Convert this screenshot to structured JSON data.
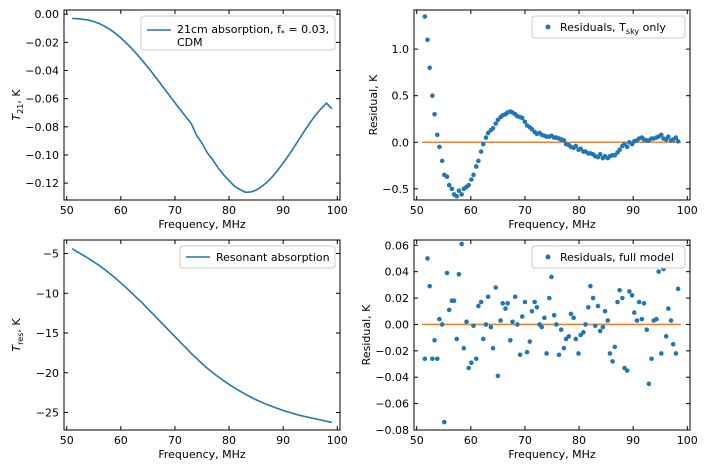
{
  "colors": {
    "series": "#1f77b4",
    "zero_line": "#ff7f0e",
    "axes": "#000000"
  },
  "chart_data": [
    {
      "id": "tl",
      "type": "line",
      "xlabel": "Frequency, MHz",
      "ylabel": "T",
      "ylabel_sub": "21",
      "ylabel_suffix": ", K",
      "xlim": [
        49.5,
        100.5
      ],
      "ylim": [
        -0.132,
        0.003
      ],
      "xticks": [
        50,
        60,
        70,
        80,
        90,
        100
      ],
      "xtick_labels": [
        "50",
        "60",
        "70",
        "80",
        "90",
        "100"
      ],
      "yticks": [
        0.0,
        -0.02,
        -0.04,
        -0.06,
        -0.08,
        -0.1,
        -0.12
      ],
      "ytick_labels": [
        "0.00",
        "−0.02",
        "−0.04",
        "−0.06",
        "−0.08",
        "−0.10",
        "−0.12"
      ],
      "legend": {
        "position": "top-right",
        "line1": "21cm absorption, f",
        "line1_sub": "*",
        "line1_suffix": " = 0.03,",
        "line2": "CDM"
      },
      "series": [
        {
          "name": "21cm absorption, f* = 0.03, CDM",
          "x": [
            51,
            52,
            53,
            54,
            55,
            56,
            57,
            58,
            59,
            60,
            61,
            62,
            63,
            64,
            65,
            66,
            67,
            68,
            69,
            70,
            71,
            72,
            73,
            74,
            75,
            76,
            77,
            78,
            79,
            80,
            81,
            82,
            83,
            84,
            85,
            86,
            87,
            88,
            89,
            90,
            91,
            92,
            93,
            94,
            95,
            96,
            97,
            98,
            99
          ],
          "y": [
            -0.003,
            -0.0032,
            -0.0036,
            -0.0042,
            -0.0052,
            -0.0066,
            -0.0085,
            -0.0108,
            -0.0136,
            -0.0168,
            -0.0204,
            -0.0243,
            -0.0285,
            -0.033,
            -0.0377,
            -0.0426,
            -0.0476,
            -0.0527,
            -0.0578,
            -0.0629,
            -0.0679,
            -0.0728,
            -0.0776,
            -0.0861,
            -0.0915,
            -0.0986,
            -0.1035,
            -0.1093,
            -0.1141,
            -0.1182,
            -0.1222,
            -0.1245,
            -0.1265,
            -0.1263,
            -0.125,
            -0.1225,
            -0.1195,
            -0.1155,
            -0.1108,
            -0.1058,
            -0.1003,
            -0.0945,
            -0.0885,
            -0.0825,
            -0.0768,
            -0.0716,
            -0.0671,
            -0.0632,
            -0.0671
          ]
        }
      ]
    },
    {
      "id": "tr",
      "type": "scatter",
      "xlabel": "Frequency, MHz",
      "ylabel": "Residual, K",
      "xlim": [
        49.5,
        100.5
      ],
      "ylim": [
        -0.62,
        1.42
      ],
      "xticks": [
        50,
        60,
        70,
        80,
        90,
        100
      ],
      "xtick_labels": [
        "50",
        "60",
        "70",
        "80",
        "90",
        "100"
      ],
      "yticks": [
        1.0,
        0.5,
        0.0,
        -0.5
      ],
      "ytick_labels": [
        "1.0",
        "0.5",
        "0.0",
        "−0.5"
      ],
      "zero_line": true,
      "legend": {
        "position": "top-right",
        "text": "Residuals, T",
        "text_sub": "sky",
        "text_suffix": " only"
      },
      "series": [
        {
          "name": "Residuals, Tsky only",
          "x": [
            51.5,
            52.0,
            52.4,
            52.9,
            53.3,
            53.8,
            54.2,
            54.7,
            55.1,
            55.6,
            56.0,
            56.5,
            56.9,
            57.4,
            57.8,
            58.3,
            58.7,
            59.2,
            59.6,
            60.1,
            60.5,
            61.0,
            61.4,
            61.9,
            62.3,
            62.8,
            63.2,
            63.7,
            64.1,
            64.6,
            65.0,
            65.5,
            65.9,
            66.4,
            66.8,
            67.3,
            67.7,
            68.2,
            68.6,
            69.1,
            69.5,
            70.0,
            70.4,
            70.9,
            71.3,
            71.8,
            72.2,
            72.7,
            73.1,
            73.6,
            74.0,
            74.5,
            74.9,
            75.4,
            75.8,
            76.3,
            76.7,
            77.2,
            77.6,
            78.1,
            78.5,
            79.0,
            79.4,
            79.9,
            80.3,
            80.8,
            81.2,
            81.7,
            82.1,
            82.6,
            83.0,
            83.5,
            83.9,
            84.4,
            84.8,
            85.3,
            85.7,
            86.2,
            86.6,
            87.1,
            87.5,
            88.0,
            88.4,
            88.9,
            89.3,
            89.8,
            90.2,
            90.7,
            91.1,
            91.6,
            92.0,
            92.5,
            92.9,
            93.4,
            93.8,
            94.3,
            94.7,
            95.2,
            95.6,
            96.1,
            96.5,
            97.0,
            97.4,
            97.9,
            98.3
          ],
          "y": [
            1.35,
            1.1,
            0.8,
            0.5,
            0.3,
            0.08,
            -0.05,
            -0.2,
            -0.35,
            -0.37,
            -0.46,
            -0.5,
            -0.56,
            -0.58,
            -0.52,
            -0.56,
            -0.5,
            -0.48,
            -0.46,
            -0.4,
            -0.35,
            -0.26,
            -0.2,
            -0.1,
            -0.02,
            0.05,
            0.1,
            0.13,
            0.15,
            0.2,
            0.24,
            0.27,
            0.29,
            0.3,
            0.32,
            0.33,
            0.32,
            0.3,
            0.28,
            0.27,
            0.26,
            0.22,
            0.18,
            0.16,
            0.14,
            0.11,
            0.09,
            0.1,
            0.08,
            0.07,
            0.06,
            0.06,
            0.07,
            0.05,
            0.05,
            0.04,
            0.03,
            0.02,
            -0.02,
            -0.03,
            -0.05,
            -0.06,
            -0.04,
            -0.08,
            -0.07,
            -0.1,
            -0.1,
            -0.12,
            -0.12,
            -0.13,
            -0.15,
            -0.16,
            -0.13,
            -0.17,
            -0.15,
            -0.17,
            -0.15,
            -0.14,
            -0.14,
            -0.11,
            -0.08,
            -0.04,
            -0.02,
            -0.05,
            0.0,
            -0.02,
            0.01,
            0.02,
            0.04,
            0.05,
            0.03,
            0.02,
            0.02,
            0.04,
            0.04,
            0.05,
            0.06,
            0.08,
            0.04,
            0.03,
            0.06,
            0.02,
            0.03,
            0.05,
            0.01
          ]
        }
      ]
    },
    {
      "id": "bl",
      "type": "line",
      "xlabel": "Frequency, MHz",
      "ylabel": "T",
      "ylabel_sub": "res",
      "ylabel_suffix": ", K",
      "xlim": [
        49.5,
        100.5
      ],
      "ylim": [
        -27.2,
        -3.3
      ],
      "xticks": [
        50,
        60,
        70,
        80,
        90,
        100
      ],
      "xtick_labels": [
        "50",
        "60",
        "70",
        "80",
        "90",
        "100"
      ],
      "yticks": [
        -5,
        -10,
        -15,
        -20,
        -25
      ],
      "ytick_labels": [
        "−5",
        "−10",
        "−15",
        "−20",
        "−25"
      ],
      "legend": {
        "position": "top-right",
        "text": "Resonant absorption"
      },
      "series": [
        {
          "name": "Resonant absorption",
          "x": [
            51,
            52,
            53,
            54,
            55,
            56,
            57,
            58,
            59,
            60,
            61,
            62,
            63,
            64,
            65,
            66,
            67,
            68,
            69,
            70,
            71,
            72,
            73,
            74,
            75,
            76,
            77,
            78,
            79,
            80,
            81,
            82,
            83,
            84,
            85,
            86,
            87,
            88,
            89,
            90,
            91,
            92,
            93,
            94,
            95,
            96,
            97,
            98,
            99
          ],
          "y": [
            -4.4,
            -4.8,
            -5.2,
            -5.6,
            -6.05,
            -6.5,
            -7.0,
            -7.55,
            -8.1,
            -8.7,
            -9.3,
            -9.95,
            -10.6,
            -11.25,
            -11.95,
            -12.65,
            -13.35,
            -14.05,
            -14.75,
            -15.45,
            -16.15,
            -16.85,
            -17.55,
            -18.2,
            -18.85,
            -19.45,
            -20.0,
            -20.5,
            -21.0,
            -21.45,
            -21.9,
            -22.3,
            -22.7,
            -23.05,
            -23.4,
            -23.7,
            -24.0,
            -24.25,
            -24.5,
            -24.75,
            -24.95,
            -25.15,
            -25.35,
            -25.5,
            -25.65,
            -25.8,
            -25.95,
            -26.1,
            -26.25
          ]
        }
      ]
    },
    {
      "id": "br",
      "type": "scatter",
      "xlabel": "Frequency, MHz",
      "ylabel": "Residual, K",
      "xlim": [
        49.5,
        100.5
      ],
      "ylim": [
        -0.08,
        0.064
      ],
      "xticks": [
        50,
        60,
        70,
        80,
        90,
        100
      ],
      "xtick_labels": [
        "50",
        "60",
        "70",
        "80",
        "90",
        "100"
      ],
      "yticks": [
        0.06,
        0.04,
        0.02,
        0.0,
        -0.02,
        -0.04,
        -0.06,
        -0.08
      ],
      "ytick_labels": [
        "0.06",
        "0.04",
        "0.02",
        "0.00",
        "−0.02",
        "−0.04",
        "−0.06",
        "−0.08"
      ],
      "zero_line": true,
      "legend": {
        "position": "top-right",
        "text": "Residuals, full model"
      },
      "series": [
        {
          "name": "Residuals, full model",
          "x": [
            51.5,
            52.0,
            52.4,
            52.9,
            53.3,
            53.8,
            54.2,
            54.7,
            55.1,
            55.6,
            56.0,
            56.5,
            56.9,
            57.4,
            57.8,
            58.3,
            58.7,
            59.2,
            59.6,
            60.1,
            60.5,
            61.0,
            61.4,
            61.9,
            62.3,
            62.8,
            63.2,
            63.7,
            64.1,
            64.6,
            65.0,
            65.5,
            65.9,
            66.4,
            66.8,
            67.3,
            67.7,
            68.2,
            68.6,
            69.1,
            69.5,
            70.0,
            70.4,
            70.9,
            71.3,
            71.8,
            72.2,
            72.7,
            73.1,
            73.6,
            74.0,
            74.5,
            74.9,
            75.4,
            75.8,
            76.3,
            76.7,
            77.2,
            77.6,
            78.1,
            78.5,
            79.0,
            79.4,
            79.9,
            80.3,
            80.8,
            81.2,
            81.7,
            82.1,
            82.6,
            83.0,
            83.5,
            83.9,
            84.4,
            84.8,
            85.3,
            85.7,
            86.2,
            86.6,
            87.1,
            87.5,
            88.0,
            88.4,
            88.9,
            89.3,
            89.8,
            90.2,
            90.7,
            91.1,
            91.6,
            92.0,
            92.5,
            92.9,
            93.4,
            93.8,
            94.3,
            94.7,
            95.2,
            95.6,
            96.1,
            96.5,
            97.0,
            97.4,
            97.9,
            98.3
          ],
          "y": [
            -0.026,
            0.05,
            0.029,
            -0.026,
            -0.012,
            -0.026,
            0.004,
            0.0,
            -0.074,
            0.039,
            0.011,
            0.018,
            0.018,
            -0.011,
            0.038,
            0.061,
            -0.018,
            0.002,
            -0.033,
            -0.029,
            -0.001,
            -0.026,
            0.014,
            0.017,
            -0.011,
            0.0,
            0.021,
            -0.002,
            -0.018,
            0.028,
            -0.039,
            0.003,
            0.016,
            0.012,
            0.016,
            -0.012,
            0.002,
            0.021,
            0.0,
            -0.023,
            0.006,
            0.017,
            -0.021,
            -0.013,
            0.01,
            0.017,
            0.013,
            0.0,
            -0.002,
            0.005,
            -0.022,
            0.02,
            0.036,
            0.007,
            0.0,
            -0.023,
            -0.004,
            -0.018,
            -0.011,
            -0.009,
            0.008,
            0.005,
            -0.011,
            -0.022,
            -0.008,
            -0.006,
            0.0,
            0.013,
            0.029,
            0.02,
            -0.001,
            0.014,
            -0.005,
            -0.002,
            0.01,
            0.003,
            -0.022,
            -0.028,
            -0.017,
            0.017,
            0.026,
            0.02,
            -0.033,
            -0.035,
            0.025,
            0.022,
            0.009,
            0.003,
            0.017,
            0.004,
            0.016,
            -0.004,
            -0.045,
            -0.026,
            0.003,
            0.004,
            0.04,
            -0.022,
            0.042,
            -0.009,
            0.012,
            0.003,
            -0.015,
            -0.022,
            0.027
          ]
        }
      ]
    }
  ]
}
